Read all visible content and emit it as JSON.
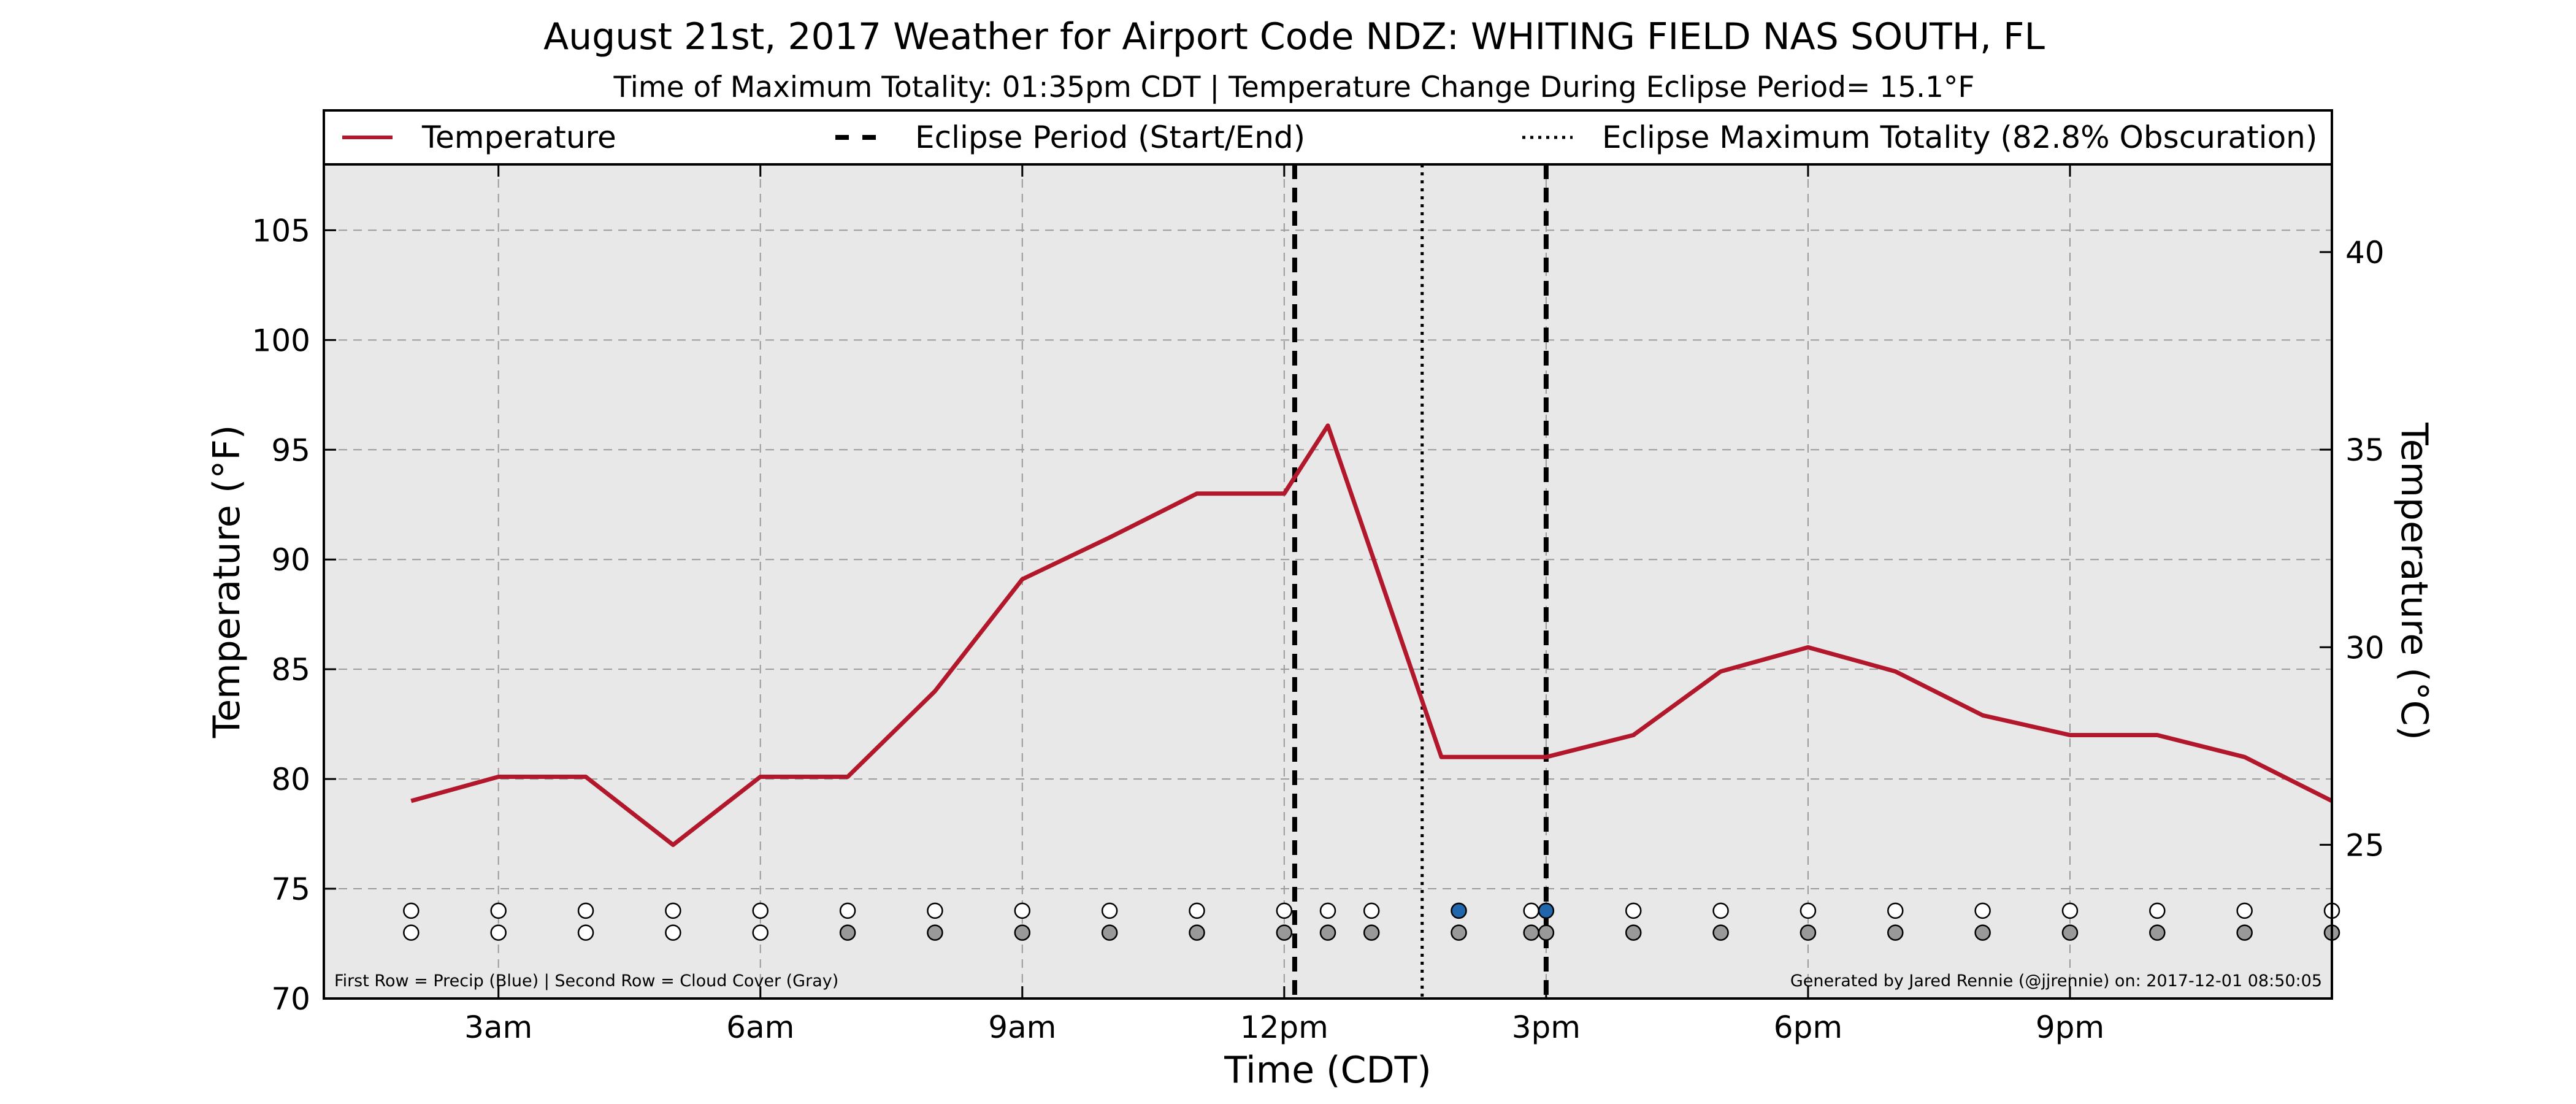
{
  "chart_data": {
    "type": "line",
    "title": "August 21st, 2017 Weather for Airport Code NDZ: WHITING FIELD NAS SOUTH, FL",
    "subtitle": "Time of Maximum Totality: 01:35pm CDT | Temperature Change During Eclipse Period= 15.1°F",
    "xlabel": "Time (CDT)",
    "ylabel": "Temperature (°F)",
    "ylabel_right": "Temperature (°C)",
    "xlim": [
      1,
      24
    ],
    "ylim": [
      70,
      108
    ],
    "ylim_right": [
      21.11,
      42.22
    ],
    "grid": true,
    "legend_position": "top",
    "x_ticks": [
      {
        "value": 3,
        "label": "3am"
      },
      {
        "value": 6,
        "label": "6am"
      },
      {
        "value": 9,
        "label": "9am"
      },
      {
        "value": 12,
        "label": "12pm"
      },
      {
        "value": 15,
        "label": "3pm"
      },
      {
        "value": 18,
        "label": "6pm"
      },
      {
        "value": 21,
        "label": "9pm"
      }
    ],
    "y_ticks": [
      70,
      75,
      80,
      85,
      90,
      95,
      100,
      105
    ],
    "y_ticks_right": [
      25,
      30,
      35,
      40
    ],
    "series": [
      {
        "name": "Temperature",
        "color": "#b2182b",
        "x": [
          2,
          3,
          4,
          5,
          6,
          7,
          8,
          9,
          10,
          11,
          12,
          12.5,
          13.8,
          14.7,
          15,
          16,
          17,
          18,
          19,
          20,
          21,
          22,
          23,
          24
        ],
        "y": [
          79,
          80.1,
          80.1,
          77,
          80.1,
          80.1,
          84,
          89.1,
          91,
          93,
          93,
          96.1,
          81,
          81,
          81,
          82,
          84.9,
          86,
          84.9,
          82.9,
          82,
          82,
          81,
          79
        ]
      }
    ],
    "legend": [
      {
        "label": "Temperature",
        "style": "solid",
        "color": "#b2182b"
      },
      {
        "label": "Eclipse Period (Start/End)",
        "style": "dashed",
        "color": "#000000"
      },
      {
        "label": "Eclipse Maximum Totality (82.8% Obscuration)",
        "style": "dotted",
        "color": "#000000"
      }
    ],
    "eclipse_lines": [
      {
        "x": 12.12,
        "style": "dashed"
      },
      {
        "x": 13.58,
        "style": "dotted"
      },
      {
        "x": 15.0,
        "style": "dashed"
      }
    ],
    "marker_rows": {
      "precip": {
        "y": 74,
        "points": [
          {
            "x": 2,
            "color": "#ffffff"
          },
          {
            "x": 3,
            "color": "#ffffff"
          },
          {
            "x": 4,
            "color": "#ffffff"
          },
          {
            "x": 5,
            "color": "#ffffff"
          },
          {
            "x": 6,
            "color": "#ffffff"
          },
          {
            "x": 7,
            "color": "#ffffff"
          },
          {
            "x": 8,
            "color": "#ffffff"
          },
          {
            "x": 9,
            "color": "#ffffff"
          },
          {
            "x": 10,
            "color": "#ffffff"
          },
          {
            "x": 11,
            "color": "#ffffff"
          },
          {
            "x": 12,
            "color": "#ffffff"
          },
          {
            "x": 12.5,
            "color": "#ffffff"
          },
          {
            "x": 13,
            "color": "#ffffff"
          },
          {
            "x": 14,
            "color": "#2166ac"
          },
          {
            "x": 14.83,
            "color": "#ffffff"
          },
          {
            "x": 15,
            "color": "#2166ac"
          },
          {
            "x": 16,
            "color": "#ffffff"
          },
          {
            "x": 17,
            "color": "#ffffff"
          },
          {
            "x": 18,
            "color": "#ffffff"
          },
          {
            "x": 19,
            "color": "#ffffff"
          },
          {
            "x": 20,
            "color": "#ffffff"
          },
          {
            "x": 21,
            "color": "#ffffff"
          },
          {
            "x": 22,
            "color": "#ffffff"
          },
          {
            "x": 23,
            "color": "#ffffff"
          },
          {
            "x": 24,
            "color": "#ffffff"
          }
        ]
      },
      "cloud": {
        "y": 73,
        "points": [
          {
            "x": 2,
            "color": "#ffffff"
          },
          {
            "x": 3,
            "color": "#ffffff"
          },
          {
            "x": 4,
            "color": "#ffffff"
          },
          {
            "x": 5,
            "color": "#ffffff"
          },
          {
            "x": 6,
            "color": "#ffffff"
          },
          {
            "x": 7,
            "color": "#999999"
          },
          {
            "x": 8,
            "color": "#999999"
          },
          {
            "x": 9,
            "color": "#999999"
          },
          {
            "x": 10,
            "color": "#999999"
          },
          {
            "x": 11,
            "color": "#999999"
          },
          {
            "x": 12,
            "color": "#999999"
          },
          {
            "x": 12.5,
            "color": "#999999"
          },
          {
            "x": 13,
            "color": "#999999"
          },
          {
            "x": 14,
            "color": "#999999"
          },
          {
            "x": 14.83,
            "color": "#999999"
          },
          {
            "x": 15,
            "color": "#999999"
          },
          {
            "x": 16,
            "color": "#999999"
          },
          {
            "x": 17,
            "color": "#999999"
          },
          {
            "x": 18,
            "color": "#999999"
          },
          {
            "x": 19,
            "color": "#999999"
          },
          {
            "x": 20,
            "color": "#999999"
          },
          {
            "x": 21,
            "color": "#999999"
          },
          {
            "x": 22,
            "color": "#999999"
          },
          {
            "x": 23,
            "color": "#999999"
          },
          {
            "x": 24,
            "color": "#999999"
          }
        ]
      }
    },
    "annotations": {
      "left": "First Row = Precip (Blue) | Second Row = Cloud Cover (Gray)",
      "right": "Generated by Jared Rennie (@jjrennie) on: 2017-12-01 08:50:05"
    }
  }
}
